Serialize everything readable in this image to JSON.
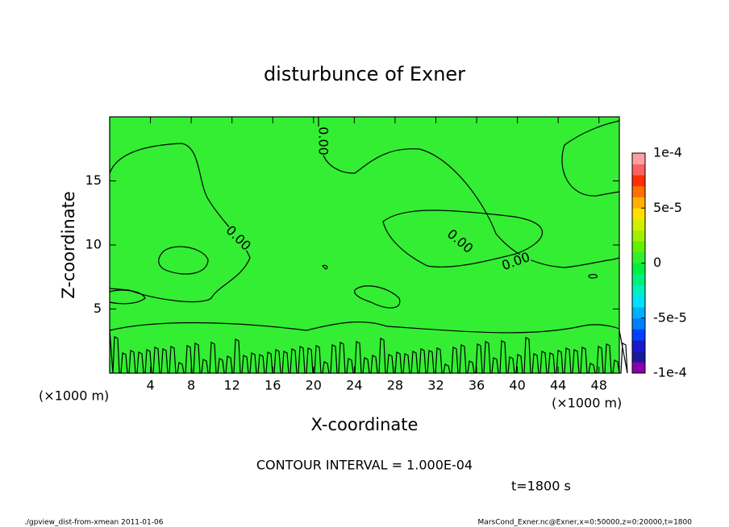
{
  "chart_data": {
    "type": "contour",
    "title": "disturbunce of Exner",
    "x_label": "X-coordinate",
    "y_label": "Z-coordinate",
    "x_unit": "(×1000 m)",
    "y_unit": "(×1000 m)",
    "xlim": [
      0,
      50
    ],
    "xticks": [
      4,
      8,
      12,
      16,
      20,
      24,
      28,
      32,
      36,
      40,
      44,
      48
    ],
    "ylim": [
      0,
      20
    ],
    "yticks": [
      5,
      10,
      15
    ],
    "field_color": "#33ee33",
    "contour_labels": [
      "0.00",
      "0.00",
      "0.00",
      "0.00"
    ],
    "colorbar": {
      "lim": [
        -0.0001,
        0.0001
      ],
      "ticks": [
        {
          "value": 0.0001,
          "label": "1e-4"
        },
        {
          "value": 5e-05,
          "label": "5e-5"
        },
        0,
        {
          "value": -5e-05,
          "label": "-5e-5"
        },
        {
          "value": -0.0001,
          "label": "-1e-4"
        }
      ],
      "colors": [
        "#8800aa",
        "#1a1a9a",
        "#1a1acc",
        "#0040ff",
        "#0080ff",
        "#00b0ff",
        "#00e0ff",
        "#00f0c0",
        "#00f080",
        "#00f040",
        "#30f030",
        "#60f000",
        "#a0f000",
        "#d0f000",
        "#ffe000",
        "#ffb000",
        "#ff7000",
        "#ff3000",
        "#ff6060",
        "#ffa0a0"
      ]
    },
    "contour_interval": "CONTOUR INTERVAL = 1.000E-04",
    "time_label": "t=1800 s",
    "footer_left": "./gpview_dist-from-xmean  2011-01-06",
    "footer_right": "MarsCond_Exner.nc@Exner,x=0:50000,z=0:20000,t=1800"
  }
}
